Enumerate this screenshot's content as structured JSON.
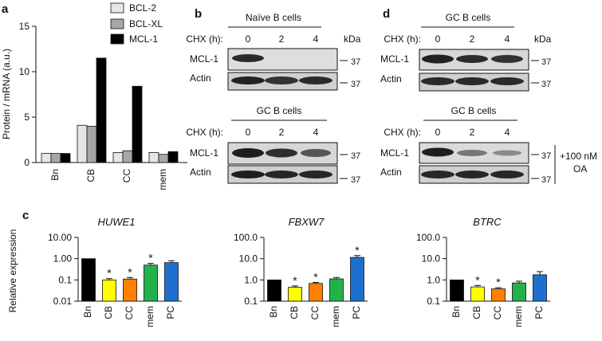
{
  "panel_labels": {
    "a": "a",
    "b": "b",
    "c": "c",
    "d": "d"
  },
  "chart_data": [
    {
      "type": "bar",
      "panel": "a",
      "ylabel": "Protein / mRNA (a.u.)",
      "ylim": [
        0,
        15
      ],
      "yticks": [
        "0",
        "5",
        "10",
        "15"
      ],
      "categories": [
        "Bn",
        "CB",
        "CC",
        "mem"
      ],
      "legend_position": "top-right",
      "series": [
        {
          "name": "BCL-2",
          "color": "#e6e6e6",
          "values": [
            1.0,
            4.1,
            1.1,
            1.1
          ]
        },
        {
          "name": "BCL-XL",
          "color": "#a6a6a6",
          "values": [
            1.0,
            4.0,
            1.3,
            0.9
          ]
        },
        {
          "name": "MCL-1",
          "color": "#000000",
          "values": [
            1.0,
            11.5,
            8.4,
            1.2
          ]
        }
      ]
    },
    {
      "type": "bar",
      "panel": "c",
      "title": "HUWE1",
      "ylabel": "Relative expression",
      "yscale": "log",
      "ylim": [
        0.01,
        10
      ],
      "yticks": [
        "0.01",
        "0.1",
        "1.00",
        "10.00"
      ],
      "categories": [
        "Bn",
        "CB",
        "CC",
        "mem",
        "PC"
      ],
      "values": [
        1.0,
        0.1,
        0.11,
        0.5,
        0.65
      ],
      "errors": [
        0,
        0.015,
        0.02,
        0.1,
        0.15
      ],
      "significant": [
        false,
        true,
        true,
        true,
        false
      ],
      "colors": [
        "#000000",
        "#ffff00",
        "#ff7f00",
        "#22b24c",
        "#1f6fd1"
      ]
    },
    {
      "type": "bar",
      "panel": "c",
      "title": "FBXW7",
      "yscale": "log",
      "ylim": [
        0.1,
        100
      ],
      "yticks": [
        "0.1",
        "1.0",
        "10.0",
        "100.0"
      ],
      "categories": [
        "Bn",
        "CB",
        "CC",
        "mem",
        "PC"
      ],
      "values": [
        1.0,
        0.45,
        0.68,
        1.12,
        11.5
      ],
      "errors": [
        0,
        0.07,
        0.08,
        0.18,
        2.5
      ],
      "significant": [
        false,
        true,
        true,
        false,
        true
      ],
      "colors": [
        "#000000",
        "#ffff00",
        "#ff7f00",
        "#22b24c",
        "#1f6fd1"
      ]
    },
    {
      "type": "bar",
      "panel": "c",
      "title": "BTRC",
      "yscale": "log",
      "ylim": [
        0.1,
        100
      ],
      "yticks": [
        "0.1",
        "1.0",
        "10.0",
        "100.0"
      ],
      "categories": [
        "Bn",
        "CB",
        "CC",
        "mem",
        "PC"
      ],
      "values": [
        1.0,
        0.47,
        0.38,
        0.72,
        1.75
      ],
      "errors": [
        0,
        0.08,
        0.05,
        0.15,
        0.7
      ],
      "significant": [
        false,
        true,
        true,
        false,
        false
      ],
      "colors": [
        "#000000",
        "#ffff00",
        "#ff7f00",
        "#22b24c",
        "#1f6fd1"
      ]
    }
  ],
  "blots": {
    "kda_header": "kDa",
    "marker": "37",
    "chx_label": "CHX (h):",
    "timepoints": [
      "0",
      "2",
      "4"
    ],
    "b_top": {
      "title": "Naïve B cells",
      "rows": [
        "MCL-1",
        "Actin"
      ]
    },
    "b_bottom": {
      "title": "GC B cells",
      "rows": [
        "MCL-1",
        "Actin"
      ]
    },
    "d_top": {
      "title": "GC B cells",
      "rows": [
        "MCL-1",
        "Actin"
      ]
    },
    "d_bottom": {
      "title": "GC B cells",
      "rows": [
        "MCL-1",
        "Actin"
      ],
      "treatment_line1": "+100 nM",
      "treatment_line2": "OA"
    }
  }
}
